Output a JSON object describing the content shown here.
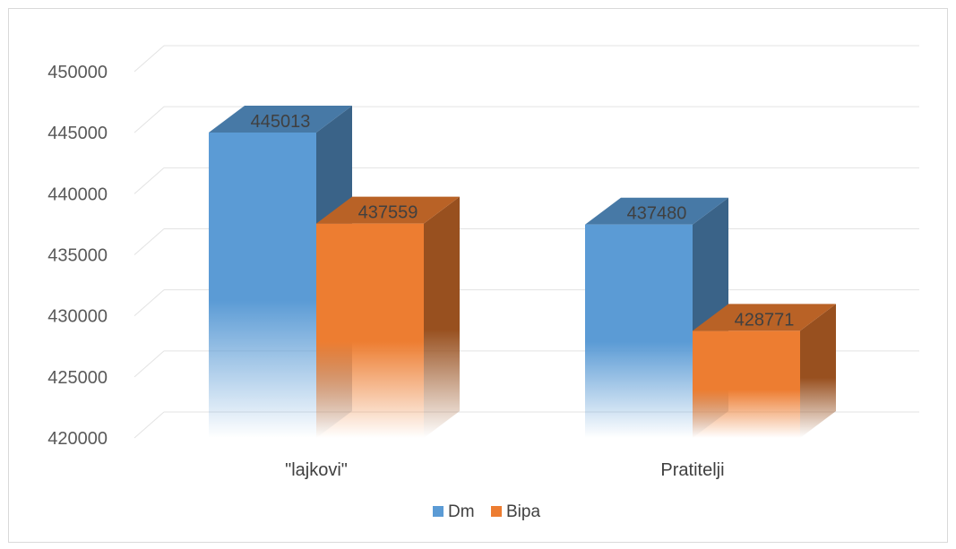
{
  "chart_data": {
    "type": "bar",
    "title": "",
    "xlabel": "",
    "ylabel": "",
    "categories": [
      "\"lajkovi\"",
      "Pratitelji"
    ],
    "series": [
      {
        "name": "Dm",
        "values": [
          445013,
          437480
        ],
        "color": "#5b9bd5"
      },
      {
        "name": "Bipa",
        "values": [
          437559,
          428771
        ],
        "color": "#ed7d31"
      }
    ],
    "ylim": [
      420000,
      450000
    ],
    "yticks": [
      "420000",
      "425000",
      "430000",
      "435000",
      "440000",
      "445000",
      "450000"
    ],
    "grid": true,
    "legend_position": "bottom",
    "style": "3d-column"
  }
}
